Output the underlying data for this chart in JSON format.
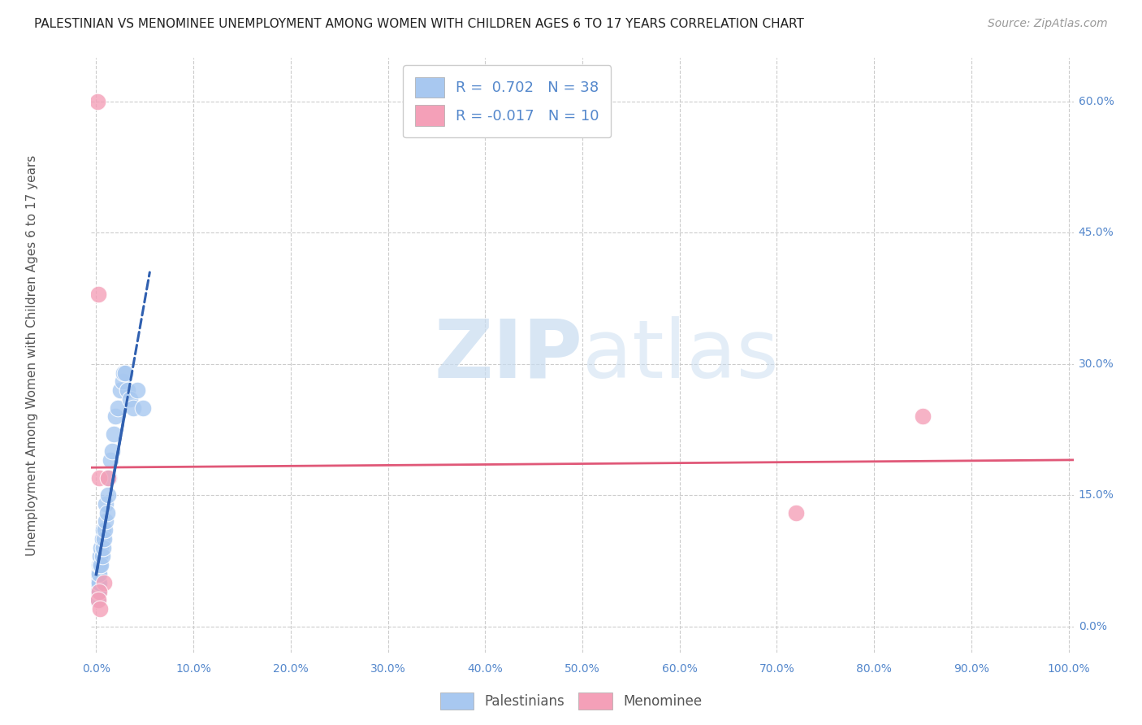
{
  "title": "PALESTINIAN VS MENOMINEE UNEMPLOYMENT AMONG WOMEN WITH CHILDREN AGES 6 TO 17 YEARS CORRELATION CHART",
  "source": "Source: ZipAtlas.com",
  "ylabel": "Unemployment Among Women with Children Ages 6 to 17 years",
  "legend_bottom": [
    "Palestinians",
    "Menominee"
  ],
  "R_palestinians": 0.702,
  "N_palestinians": 38,
  "R_menominee": -0.017,
  "N_menominee": 10,
  "xlim": [
    -0.005,
    1.005
  ],
  "ylim": [
    -0.03,
    0.65
  ],
  "xtick_vals": [
    0.0,
    0.1,
    0.2,
    0.3,
    0.4,
    0.5,
    0.6,
    0.7,
    0.8,
    0.9,
    1.0
  ],
  "ytick_vals": [
    0.0,
    0.15,
    0.3,
    0.45,
    0.6
  ],
  "ytick_labels": [
    "0.0%",
    "15.0%",
    "30.0%",
    "45.0%",
    "60.0%"
  ],
  "xtick_labels": [
    "0.0%",
    "10.0%",
    "20.0%",
    "30.0%",
    "40.0%",
    "50.0%",
    "60.0%",
    "70.0%",
    "80.0%",
    "90.0%",
    "100.0%"
  ],
  "blue_fill": "#A8C8F0",
  "pink_fill": "#F4A0B8",
  "blue_line": "#3060B0",
  "pink_line": "#E05878",
  "axis_tick_color": "#5588CC",
  "grid_color": "#CCCCCC",
  "title_color": "#222222",
  "source_color": "#999999",
  "ylabel_color": "#555555",
  "watermark_color": "#C8DCF0",
  "palestinians_x": [
    0.001,
    0.001,
    0.001,
    0.002,
    0.002,
    0.002,
    0.003,
    0.003,
    0.003,
    0.004,
    0.004,
    0.005,
    0.005,
    0.006,
    0.006,
    0.007,
    0.007,
    0.008,
    0.009,
    0.01,
    0.01,
    0.011,
    0.012,
    0.013,
    0.015,
    0.016,
    0.018,
    0.02,
    0.022,
    0.025,
    0.027,
    0.028,
    0.03,
    0.032,
    0.035,
    0.038,
    0.042,
    0.048
  ],
  "palestinians_y": [
    0.03,
    0.04,
    0.05,
    0.04,
    0.05,
    0.06,
    0.05,
    0.06,
    0.07,
    0.07,
    0.08,
    0.07,
    0.09,
    0.08,
    0.1,
    0.09,
    0.11,
    0.1,
    0.11,
    0.12,
    0.14,
    0.13,
    0.15,
    0.17,
    0.19,
    0.2,
    0.22,
    0.24,
    0.25,
    0.27,
    0.28,
    0.29,
    0.29,
    0.27,
    0.26,
    0.25,
    0.27,
    0.25
  ],
  "menominee_x": [
    0.001,
    0.002,
    0.003,
    0.008,
    0.012,
    0.003,
    0.002,
    0.004,
    0.72,
    0.85
  ],
  "menominee_y": [
    0.6,
    0.38,
    0.17,
    0.05,
    0.17,
    0.04,
    0.03,
    0.02,
    0.13,
    0.24
  ],
  "pink_trend_y_intercept": 0.185,
  "pink_trend_slope": -0.003
}
